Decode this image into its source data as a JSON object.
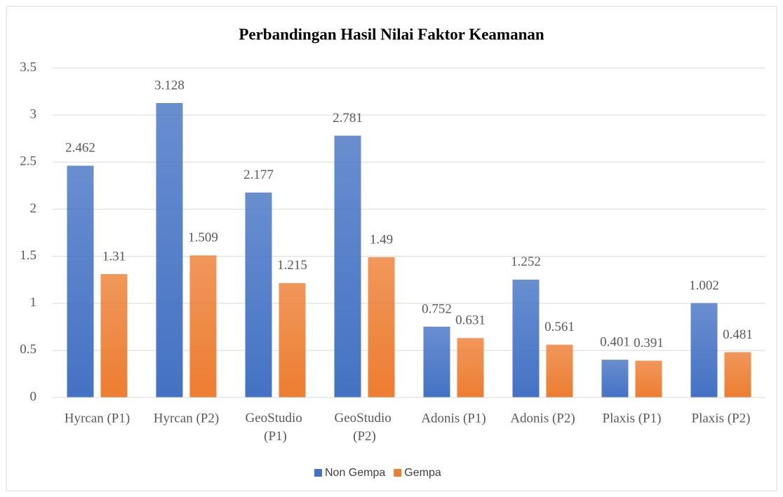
{
  "chart_data": {
    "type": "bar",
    "title": "Perbandingan Hasil Nilai Faktor Keamanan",
    "categories": [
      "Hyrcan (P1)",
      "Hyrcan (P2)",
      "GeoStudio (P1)",
      "GeoStudio (P2)",
      "Adonis (P1)",
      "Adonis (P2)",
      "Plaxis (P1)",
      "Plaxis (P2)"
    ],
    "series": [
      {
        "name": "Non Gempa",
        "color": "#4472c4",
        "values": [
          2.462,
          3.128,
          2.177,
          2.781,
          0.752,
          1.252,
          0.401,
          1.002
        ]
      },
      {
        "name": "Gempa",
        "color": "#ed7d31",
        "values": [
          1.31,
          1.509,
          1.215,
          1.49,
          0.631,
          0.561,
          0.391,
          0.481
        ]
      }
    ],
    "ylim": [
      0,
      3.5
    ],
    "yticks": [
      0,
      0.5,
      1,
      1.5,
      2,
      2.5,
      3,
      3.5
    ],
    "grid": true,
    "legend": "bottom"
  }
}
